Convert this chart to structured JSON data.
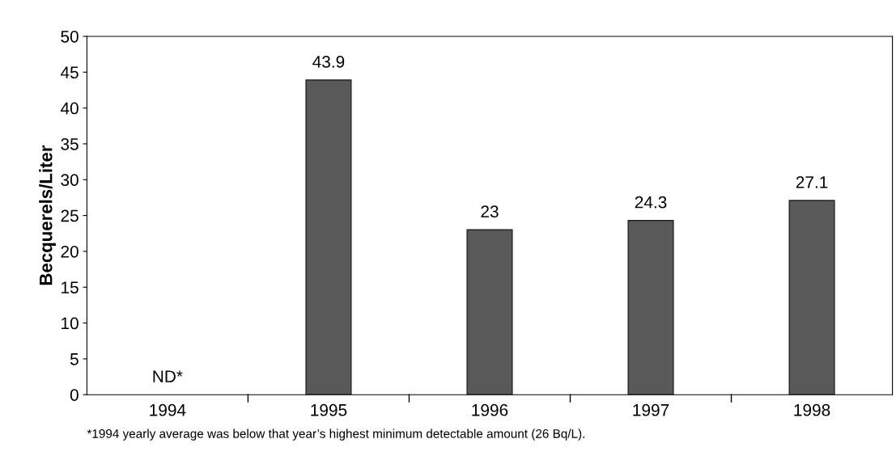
{
  "chart_data": {
    "type": "bar",
    "ylabel": "Becquerels/Liter",
    "categories": [
      "1994",
      "1995",
      "1996",
      "1997",
      "1998"
    ],
    "values": [
      null,
      43.9,
      23,
      24.3,
      27.1
    ],
    "value_labels": [
      "ND*",
      "43.9",
      "23",
      "24.3",
      "27.1"
    ],
    "color": "#595959",
    "ylim": [
      0,
      50
    ],
    "yticks": [
      0,
      5,
      10,
      15,
      20,
      25,
      30,
      35,
      40,
      45,
      50
    ],
    "grid": false,
    "legend": false,
    "annotations": [
      "*1994 yearly average was below that year’s highest minimum detectable amount (26 Bq/L)."
    ]
  }
}
